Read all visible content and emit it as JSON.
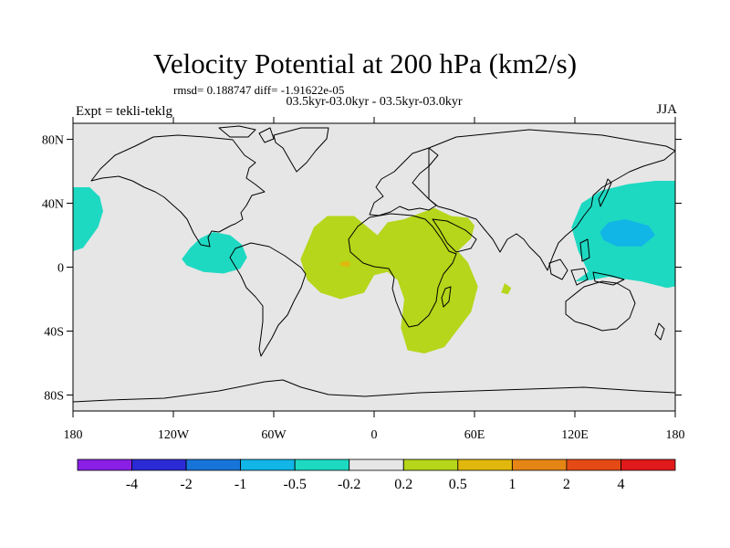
{
  "chart_data": {
    "type": "heatmap",
    "title": "Velocity Potential at 200 hPa (km2/s)",
    "stats": "rmsd= 0.188747 diff= -1.91622e-05",
    "subtitle": "03.5kyr-03.0kyr - 03.5kyr-03.0kyr",
    "left_label": "Expt = tekli-teklg",
    "right_label": "JJA",
    "x_range": [
      -180,
      180
    ],
    "y_range": [
      -90,
      90
    ],
    "x_ticks": [
      {
        "value": -180,
        "label": "180"
      },
      {
        "value": -120,
        "label": "120W"
      },
      {
        "value": -60,
        "label": "60W"
      },
      {
        "value": 0,
        "label": "0"
      },
      {
        "value": 60,
        "label": "60E"
      },
      {
        "value": 120,
        "label": "120E"
      },
      {
        "value": 180,
        "label": "180"
      }
    ],
    "y_ticks": [
      {
        "value": 80,
        "label": "80N"
      },
      {
        "value": 40,
        "label": "40N"
      },
      {
        "value": 0,
        "label": "0"
      },
      {
        "value": -40,
        "label": "40S"
      },
      {
        "value": -80,
        "label": "80S"
      }
    ],
    "colorbar": {
      "colors": [
        "#8a1fe6",
        "#2a2ad6",
        "#1775d9",
        "#11b5e6",
        "#1ed9c2",
        "#e6e6e6",
        "#b5d61a",
        "#e0b80d",
        "#e58516",
        "#e54a16",
        "#e01a1a"
      ],
      "labels": [
        "-4",
        "-2",
        "-1",
        "-0.5",
        "-0.2",
        "0.2",
        "0.5",
        "1",
        "2",
        "4"
      ]
    },
    "regions": [
      {
        "name": "east-pacific-negative",
        "level": "-0.5 to -0.2",
        "color": "#1ed9c2",
        "points": [
          [
            -180,
            50
          ],
          [
            -170,
            50
          ],
          [
            -164,
            44
          ],
          [
            -162,
            35
          ],
          [
            -165,
            25
          ],
          [
            -174,
            12
          ],
          [
            -180,
            10
          ]
        ]
      },
      {
        "name": "central-america-negative",
        "level": "-0.5 to -0.2",
        "color": "#1ed9c2",
        "points": [
          [
            -112,
            1
          ],
          [
            -115,
            5
          ],
          [
            -110,
            12
          ],
          [
            -104,
            18
          ],
          [
            -96,
            22
          ],
          [
            -86,
            20
          ],
          [
            -79,
            14
          ],
          [
            -76,
            6
          ],
          [
            -80,
            -1
          ],
          [
            -90,
            -4
          ],
          [
            -102,
            -3
          ]
        ]
      },
      {
        "name": "west-pacific-negative",
        "level": "-0.5 to -0.2",
        "color": "#1ed9c2",
        "points": [
          [
            120,
            -9
          ],
          [
            128,
            -3
          ],
          [
            122,
            10
          ],
          [
            118,
            25
          ],
          [
            124,
            40
          ],
          [
            136,
            48
          ],
          [
            152,
            52
          ],
          [
            168,
            54
          ],
          [
            180,
            54
          ],
          [
            180,
            -12
          ],
          [
            175,
            -13
          ],
          [
            160,
            -9
          ],
          [
            140,
            -6
          ],
          [
            130,
            -8
          ]
        ]
      },
      {
        "name": "west-pacific-core",
        "level": "-1 to -0.5",
        "color": "#11b5e6",
        "points": [
          [
            135,
            22
          ],
          [
            140,
            28
          ],
          [
            150,
            30
          ],
          [
            164,
            26
          ],
          [
            168,
            20
          ],
          [
            160,
            13
          ],
          [
            145,
            13
          ],
          [
            137,
            17
          ]
        ]
      },
      {
        "name": "africa-indian-positive",
        "level": "0.2 to 0.5",
        "color": "#b5d61a",
        "points": [
          [
            -40,
            15
          ],
          [
            -36,
            25
          ],
          [
            -28,
            32
          ],
          [
            -12,
            32
          ],
          [
            2,
            20
          ],
          [
            8,
            28
          ],
          [
            18,
            30
          ],
          [
            28,
            34
          ],
          [
            36,
            37
          ],
          [
            46,
            32
          ],
          [
            56,
            31
          ],
          [
            60,
            26
          ],
          [
            58,
            18
          ],
          [
            50,
            10
          ],
          [
            56,
            3
          ],
          [
            62,
            -12
          ],
          [
            58,
            -28
          ],
          [
            42,
            -50
          ],
          [
            30,
            -54
          ],
          [
            20,
            -52
          ],
          [
            16,
            -38
          ],
          [
            18,
            -20
          ],
          [
            14,
            -8
          ],
          [
            8,
            -3
          ],
          [
            0,
            -5
          ],
          [
            -6,
            -16
          ],
          [
            -20,
            -20
          ],
          [
            -32,
            -16
          ],
          [
            -40,
            -8
          ],
          [
            -44,
            5
          ]
        ]
      },
      {
        "name": "madagascar-lobe-positive",
        "level": "0.2 to 0.5",
        "color": "#b5d61a",
        "points": [
          [
            78,
            -10
          ],
          [
            82,
            -13
          ],
          [
            80,
            -17
          ],
          [
            76,
            -16
          ]
        ]
      },
      {
        "name": "atlantic-maximum",
        "level": "0.5 to 1",
        "color": "#e0b80d",
        "points": [
          [
            -20,
            3
          ],
          [
            -16,
            4
          ],
          [
            -14,
            2
          ],
          [
            -16,
            0
          ],
          [
            -20,
            1
          ]
        ]
      }
    ]
  }
}
